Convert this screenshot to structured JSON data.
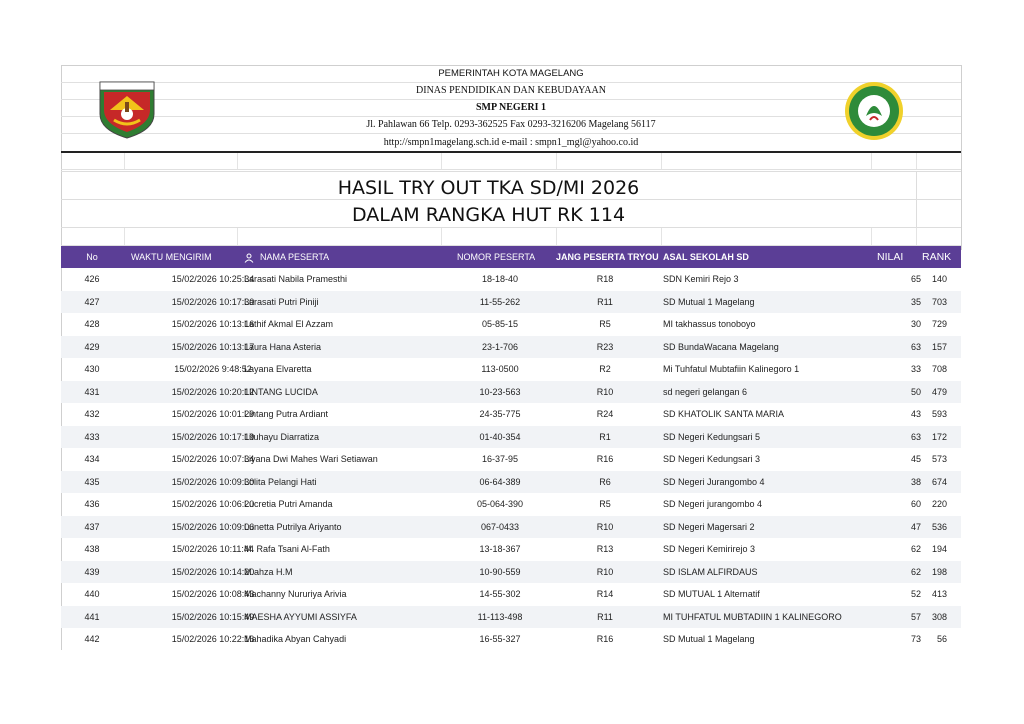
{
  "letterhead": {
    "line1": "PEMERINTAH KOTA MAGELANG",
    "line2": "DINAS PENDIDIKAN DAN KEBUDAYAAN",
    "line3": "SMP NEGERI 1",
    "line4": "Jl. Pahlawan 66 Telp. 0293-362525 Fax 0293-3216206 Magelang 56117",
    "line5": "http://smpn1magelang.sch.id e-mail : smpn1_mgl@yahoo.co.id",
    "logo_left_text": "KOTA MAGELANG",
    "logo_right_text": "GREEN SCHOOL"
  },
  "title": {
    "line1": "HASIL TRY OUT TKA SD/MI 2026",
    "line2": "DALAM RANGKA HUT RK 114"
  },
  "colors": {
    "header_bg": "#5b3e96",
    "row_alt": "#f1f3f6"
  },
  "table": {
    "headers": {
      "no": "No",
      "waktu": "WAKTU MENGIRIM",
      "nama": "NAMA PESERTA",
      "nomor": "NOMOR PESERTA",
      "ruang": "JANG PESERTA TRYOU",
      "asal": "ASAL SEKOLAH SD",
      "nilai": "NILAI",
      "rank": "RANK"
    },
    "rows": [
      {
        "no": "426",
        "time": "15/02/2026 10:25:34",
        "name": "Larasati Nabila Pramesthi",
        "nomor": "18-18-40",
        "ruang": "R18",
        "school": "SDN Kemiri Rejo 3",
        "nilai": "65",
        "rank": "140"
      },
      {
        "no": "427",
        "time": "15/02/2026 10:17:30",
        "name": "Larasati Putri Piniji",
        "nomor": "11-55-262",
        "ruang": "R11",
        "school": "SD Mutual 1 Magelang",
        "nilai": "35",
        "rank": "703"
      },
      {
        "no": "428",
        "time": "15/02/2026 10:13:16",
        "name": "Lathif Akmal El Azzam",
        "nomor": "05-85-15",
        "ruang": "R5",
        "school": "MI takhassus tonoboyo",
        "nilai": "30",
        "rank": "729"
      },
      {
        "no": "429",
        "time": "15/02/2026 10:13:17",
        "name": "Laura Hana Asteria",
        "nomor": "23-1-706",
        "ruang": "R23",
        "school": "SD BundaWacana Magelang",
        "nilai": "63",
        "rank": "157"
      },
      {
        "no": "430",
        "time": "15/02/2026 9:48:52",
        "name": "Layana Elvaretta",
        "nomor": "113-0500",
        "ruang": "R2",
        "school": "Mi Tuhfatul Mubtafiin Kalinegoro 1",
        "nilai": "33",
        "rank": "708"
      },
      {
        "no": "431",
        "time": "15/02/2026 10:20:12",
        "name": "LINTANG LUCIDA",
        "nomor": "10-23-563",
        "ruang": "R10",
        "school": "sd negeri gelangan 6",
        "nilai": "50",
        "rank": "479"
      },
      {
        "no": "432",
        "time": "15/02/2026 10:01:29",
        "name": "Lintang Putra Ardiant",
        "nomor": "24-35-775",
        "ruang": "R24",
        "school": "SD KHATOLIK SANTA MARIA",
        "nilai": "43",
        "rank": "593"
      },
      {
        "no": "433",
        "time": "15/02/2026 10:17:19",
        "name": "Lituhayu Diarratiza",
        "nomor": "01-40-354",
        "ruang": "R1",
        "school": "SD Negeri Kedungsari 5",
        "nilai": "63",
        "rank": "172"
      },
      {
        "no": "434",
        "time": "15/02/2026 10:07:34",
        "name": "Liyana Dwi Mahes Wari Setiawan",
        "nomor": "16-37-95",
        "ruang": "R16",
        "school": "SD Negeri Kedungsari 3",
        "nilai": "45",
        "rank": "573"
      },
      {
        "no": "435",
        "time": "15/02/2026 10:09:30",
        "name": "Lolita Pelangi Hati",
        "nomor": "06-64-389",
        "ruang": "R6",
        "school": "SD Negeri Jurangombo 4",
        "nilai": "38",
        "rank": "674"
      },
      {
        "no": "436",
        "time": "15/02/2026 10:06:20",
        "name": "Lucretia Putri Amanda",
        "nomor": "05-064-390",
        "ruang": "R5",
        "school": "SD Negeri jurangombo 4",
        "nilai": "60",
        "rank": "220"
      },
      {
        "no": "437",
        "time": "15/02/2026 10:09:06",
        "name": "Lunetta Putrilya Ariyanto",
        "nomor": "067-0433",
        "ruang": "R10",
        "school": "SD Negeri Magersari 2",
        "nilai": "47",
        "rank": "536"
      },
      {
        "no": "438",
        "time": "15/02/2026 10:11:44",
        "name": "M. Rafa Tsani Al-Fath",
        "nomor": "13-18-367",
        "ruang": "R13",
        "school": "SD Negeri Kemirirejo 3",
        "nilai": "62",
        "rank": "194"
      },
      {
        "no": "439",
        "time": "15/02/2026 10:14:20",
        "name": "M.ahza H.M",
        "nomor": "10-90-559",
        "ruang": "R10",
        "school": "SD ISLAM ALFIRDAUS",
        "nilai": "62",
        "rank": "198"
      },
      {
        "no": "440",
        "time": "15/02/2026 10:08:43",
        "name": "Machanny Nururiya Arivia",
        "nomor": "14-55-302",
        "ruang": "R14",
        "school": "SD MUTUAL 1 Alternatif",
        "nilai": "52",
        "rank": "413"
      },
      {
        "no": "441",
        "time": "15/02/2026 10:15:49",
        "name": "MAESHA AYYUMI ASSIYFA",
        "nomor": "11-113-498",
        "ruang": "R11",
        "school": "MI TUHFATUL MUBTADIIN 1 KALINEGORO",
        "nilai": "57",
        "rank": "308"
      },
      {
        "no": "442",
        "time": "15/02/2026 10:22:16",
        "name": "Mahadika Abyan Cahyadi",
        "nomor": "16-55-327",
        "ruang": "R16",
        "school": "SD Mutual 1 Magelang",
        "nilai": "73",
        "rank": "56"
      }
    ]
  }
}
